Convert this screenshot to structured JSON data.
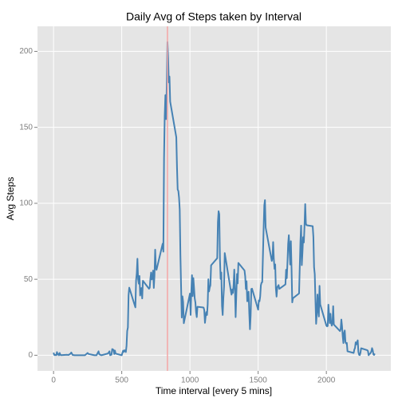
{
  "chart_data": {
    "type": "line",
    "title": "Daily Avg of Steps taken by Interval",
    "x_label": "Time interval [every 5 mins]",
    "y_label": "Avg Steps",
    "x": [
      0,
      5,
      10,
      15,
      20,
      25,
      30,
      35,
      40,
      45,
      50,
      55,
      100,
      110,
      125,
      130,
      140,
      155,
      200,
      230,
      250,
      255,
      300,
      315,
      330,
      335,
      350,
      400,
      410,
      415,
      425,
      430,
      440,
      445,
      450,
      455,
      500,
      505,
      510,
      515,
      520,
      525,
      530,
      535,
      540,
      545,
      550,
      555,
      600,
      605,
      610,
      615,
      620,
      625,
      630,
      635,
      640,
      645,
      650,
      655,
      700,
      705,
      710,
      715,
      720,
      725,
      730,
      735,
      740,
      745,
      750,
      755,
      800,
      805,
      810,
      815,
      820,
      825,
      830,
      835,
      840,
      845,
      850,
      855,
      900,
      905,
      910,
      915,
      920,
      925,
      930,
      935,
      940,
      945,
      950,
      955,
      1000,
      1005,
      1010,
      1015,
      1020,
      1025,
      1030,
      1035,
      1040,
      1045,
      1050,
      1055,
      1100,
      1105,
      1110,
      1115,
      1120,
      1125,
      1130,
      1135,
      1140,
      1145,
      1150,
      1155,
      1200,
      1205,
      1210,
      1215,
      1220,
      1225,
      1230,
      1235,
      1240,
      1245,
      1250,
      1255,
      1300,
      1305,
      1310,
      1315,
      1320,
      1325,
      1330,
      1335,
      1340,
      1345,
      1350,
      1355,
      1400,
      1405,
      1410,
      1415,
      1420,
      1425,
      1430,
      1435,
      1440,
      1445,
      1450,
      1455,
      1500,
      1505,
      1510,
      1515,
      1520,
      1525,
      1530,
      1535,
      1540,
      1545,
      1550,
      1555,
      1600,
      1605,
      1610,
      1615,
      1620,
      1625,
      1630,
      1635,
      1640,
      1645,
      1650,
      1655,
      1700,
      1705,
      1710,
      1715,
      1720,
      1725,
      1730,
      1735,
      1740,
      1745,
      1750,
      1755,
      1800,
      1805,
      1810,
      1815,
      1820,
      1825,
      1830,
      1835,
      1840,
      1845,
      1850,
      1855,
      1900,
      1905,
      1910,
      1915,
      1920,
      1925,
      1930,
      1935,
      1940,
      1945,
      1950,
      1955,
      2000,
      2005,
      2010,
      2015,
      2020,
      2025,
      2030,
      2035,
      2040,
      2045,
      2050,
      2055,
      2100,
      2105,
      2110,
      2115,
      2120,
      2125,
      2130,
      2135,
      2140,
      2145,
      2150,
      2155,
      2200,
      2205,
      2210,
      2215,
      2220,
      2225,
      2230,
      2235,
      2240,
      2245,
      2250,
      2255,
      2300,
      2305,
      2310,
      2315,
      2320,
      2325,
      2330,
      2335,
      2340,
      2345,
      2350,
      2355
    ],
    "series": [
      {
        "name": "Avg Steps",
        "color": "#4682b4",
        "values": [
          1.7,
          0.3,
          0.1,
          0.2,
          0.1,
          2.1,
          0.5,
          0.9,
          0,
          1.5,
          0.3,
          0.1,
          0.3,
          0.2,
          1.1,
          1.8,
          0.2,
          0,
          0,
          0,
          1.5,
          0.9,
          0,
          0,
          2.6,
          0.7,
          0,
          1.2,
          2.6,
          0,
          0.4,
          4.1,
          3.5,
          0.8,
          3.1,
          1.1,
          0,
          1.6,
          3,
          2.2,
          3.3,
          2.9,
          2.1,
          6.1,
          16,
          18.3,
          39.5,
          44.5,
          31.5,
          49.3,
          53.8,
          63.5,
          50,
          47.1,
          52.2,
          39.3,
          44,
          44.2,
          37.4,
          49,
          43.8,
          44.4,
          50.5,
          54.5,
          49.9,
          51,
          55.7,
          44.3,
          52.3,
          69.5,
          57.8,
          56.2,
          73.4,
          68.2,
          129.4,
          157.5,
          171.2,
          155.4,
          177.3,
          206.2,
          195.9,
          179.6,
          183.4,
          167,
          143.5,
          124,
          109.1,
          108.1,
          103.7,
          95.9,
          66.2,
          45.2,
          24.8,
          38.8,
          35,
          21.1,
          40.6,
          26.5,
          42.4,
          52.7,
          38.9,
          50.8,
          44.3,
          37.4,
          34.7,
          28.3,
          25.1,
          31.9,
          31.4,
          29.7,
          21.3,
          25.5,
          28.4,
          26.5,
          33.4,
          50,
          42,
          44.6,
          46,
          59.2,
          63.9,
          87.7,
          94.8,
          92.8,
          63.4,
          50.2,
          54.5,
          32.4,
          26.5,
          37.7,
          45.1,
          67.3,
          42.3,
          39.9,
          43.3,
          41,
          46.2,
          56.4,
          42.8,
          25.1,
          40,
          53.5,
          47.3,
          60.8,
          55.8,
          52,
          43.6,
          48.7,
          35.5,
          37.5,
          41.8,
          27.5,
          17.1,
          26.1,
          43.6,
          43.8,
          30,
          36.1,
          35.5,
          38.8,
          46,
          47.8,
          48.1,
          65.3,
          82.9,
          98.7,
          102.1,
          84,
          62.1,
          64.1,
          74.5,
          63.2,
          56.9,
          59.8,
          43.9,
          38.6,
          44.7,
          45.5,
          46.2,
          43.7,
          46.6,
          56.3,
          50.7,
          61.2,
          73.4,
          79,
          68.9,
          59.7,
          75.1,
          56.5,
          34.8,
          37.5,
          40.7,
          58,
          74.7,
          85.3,
          59.3,
          67.8,
          77.7,
          74.2,
          85.3,
          99.5,
          86.6,
          85.6,
          84.9,
          77.8,
          58,
          53.4,
          36.3,
          20.7,
          27.4,
          40,
          30.2,
          25.5,
          45.7,
          33.5,
          19.6,
          19,
          19.3,
          33.3,
          26.8,
          21.2,
          27.3,
          21.3,
          19.5,
          21.3,
          32.3,
          20.2,
          15.9,
          17.2,
          23.5,
          19.2,
          12.5,
          8,
          14.7,
          16.3,
          8.7,
          7.8,
          8.1,
          2.6,
          1.5,
          3.7,
          4.8,
          8.5,
          7.1,
          8.7,
          9.8,
          2.2,
          0.3,
          0.1,
          1.6,
          4.6,
          3.3,
          2.8,
          0,
          0.8,
          1,
          1.6,
          2.6,
          4.7,
          3.3,
          0.6,
          0.2,
          1.1
        ]
      }
    ],
    "vline": 835,
    "vline_color": "#f4a6a6",
    "xlim": [
      -117.75,
      2472.75
    ],
    "xticks": [
      0,
      500,
      1000,
      1500,
      2000
    ],
    "ylim": [
      -10.3,
      216.5
    ],
    "yticks": [
      0,
      50,
      100,
      150,
      200
    ],
    "grid": true,
    "panel_color": "#e5e5e5"
  }
}
